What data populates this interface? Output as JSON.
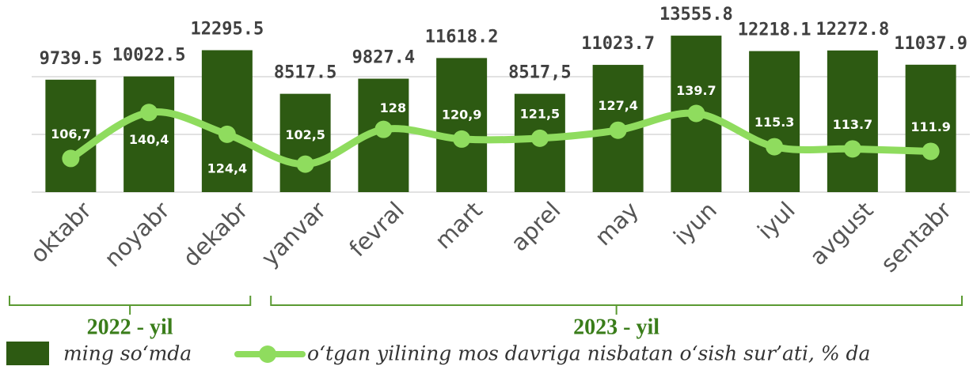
{
  "chart_data": {
    "type": "bar-line",
    "categories": [
      "oktabr",
      "noyabr",
      "dekabr",
      "yanvar",
      "fevral",
      "mart",
      "aprel",
      "may",
      "iyun",
      "iyul",
      "avgust",
      "sentabr"
    ],
    "group_labels": [
      "2022 - yil",
      "2023 - yil"
    ],
    "series": [
      {
        "name": "ming so‘mda",
        "type": "bar",
        "color": "#2d5a12",
        "values": [
          9739.5,
          10022.5,
          12295.5,
          8517.5,
          9827.4,
          11618.2,
          8517.5,
          11023.7,
          13555.8,
          12218.1,
          12272.8,
          11037.9
        ],
        "value_labels": [
          "9739.5",
          "10022.5",
          "12295.5",
          "8517.5",
          "9827.4",
          "11618.2",
          "8517,5",
          "11023.7",
          "13555.8",
          "12218.1",
          "12272.8",
          "11037.9"
        ]
      },
      {
        "name": "o‘tgan yilining mos davriga nisbatan o‘sish sur’ati, % da",
        "type": "line",
        "axis": "y2",
        "color": "#8fdc5e",
        "values": [
          106.7,
          140.4,
          124.4,
          102.5,
          128,
          120.9,
          121.5,
          127.4,
          139.7,
          115.3,
          113.7,
          111.9
        ],
        "value_labels": [
          "106,7",
          "140,4",
          "124,4",
          "102,5",
          "128",
          "120,9",
          "121,5",
          "127,4",
          "139.7",
          "115.3",
          "113.7",
          "111.9"
        ]
      }
    ],
    "ylim": [
      0,
      15000
    ],
    "yticks": [
      0,
      5000,
      10000
    ],
    "y2lim": [
      82,
      209
    ],
    "grid": true
  }
}
